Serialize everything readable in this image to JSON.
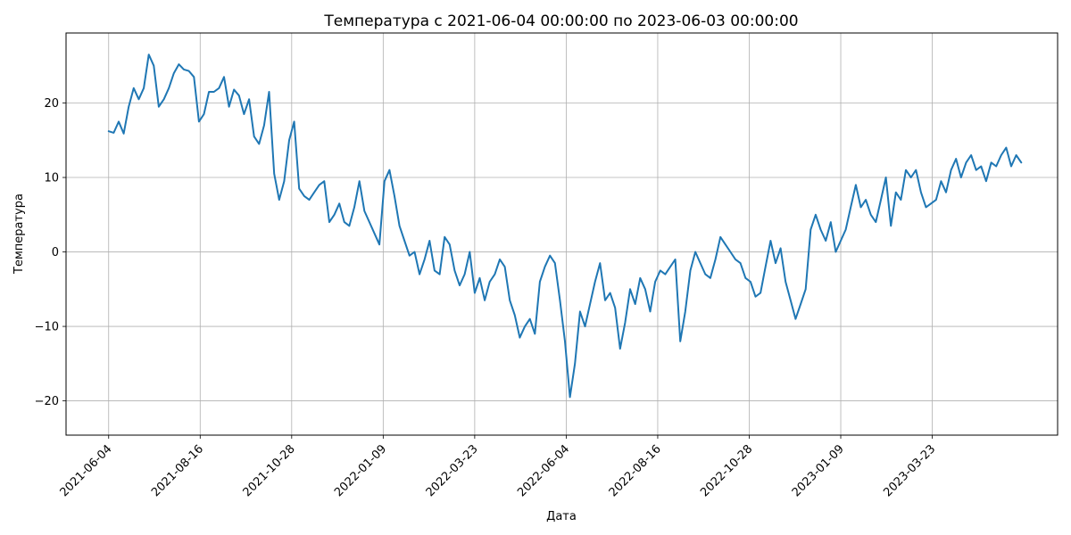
{
  "chart_data": {
    "type": "line",
    "title": "Температура с 2021-06-04 00:00:00 по 2023-06-03 00:00:00",
    "xlabel": "Дата",
    "ylabel": "Температура",
    "x_ticks": [
      "2021-06-04",
      "2021-08-16",
      "2021-10-28",
      "2022-01-09",
      "2022-03-23",
      "2022-06-04",
      "2022-08-16",
      "2022-10-28",
      "2023-01-09",
      "2023-03-23"
    ],
    "y_ticks": [
      "−20",
      "−10",
      "0",
      "10",
      "20"
    ],
    "y_tick_values": [
      -20,
      -10,
      0,
      10,
      20
    ],
    "xlim": [
      "2021-05-01",
      "2023-07-01"
    ],
    "ylim": [
      -24.6,
      29.4
    ],
    "grid": true,
    "series": [
      {
        "color": "#1f77b4",
        "x": [
          "2021-06-04",
          "2021-06-08",
          "2021-06-12",
          "2021-06-16",
          "2021-06-20",
          "2021-06-24",
          "2021-06-28",
          "2021-07-02",
          "2021-07-06",
          "2021-07-10",
          "2021-07-14",
          "2021-07-18",
          "2021-07-22",
          "2021-07-26",
          "2021-07-30",
          "2021-08-03",
          "2021-08-07",
          "2021-08-11",
          "2021-08-15",
          "2021-08-19",
          "2021-08-23",
          "2021-08-27",
          "2021-08-31",
          "2021-09-04",
          "2021-09-08",
          "2021-09-12",
          "2021-09-16",
          "2021-09-20",
          "2021-09-24",
          "2021-09-28",
          "2021-10-02",
          "2021-10-06",
          "2021-10-10",
          "2021-10-14",
          "2021-10-18",
          "2021-10-22",
          "2021-10-26",
          "2021-10-30",
          "2021-11-03",
          "2021-11-07",
          "2021-11-11",
          "2021-11-15",
          "2021-11-19",
          "2021-11-23",
          "2021-11-27",
          "2021-12-01",
          "2021-12-05",
          "2021-12-09",
          "2021-12-13",
          "2021-12-17",
          "2021-12-21",
          "2021-12-25",
          "2021-12-29",
          "2022-01-02",
          "2022-01-06",
          "2022-01-10",
          "2022-01-14",
          "2022-01-18",
          "2022-01-22",
          "2022-01-26",
          "2022-01-30",
          "2022-02-03",
          "2022-02-07",
          "2022-02-11",
          "2022-02-15",
          "2022-02-19",
          "2022-02-23",
          "2022-02-27",
          "2022-03-03",
          "2022-03-07",
          "2022-03-11",
          "2022-03-15",
          "2022-03-19",
          "2022-03-23",
          "2022-03-27",
          "2022-03-31",
          "2022-04-04",
          "2022-04-08",
          "2022-04-12",
          "2022-04-16",
          "2022-04-20",
          "2022-04-24",
          "2022-04-28",
          "2022-05-02",
          "2022-05-06",
          "2022-05-10",
          "2022-05-14",
          "2022-05-18",
          "2022-05-22",
          "2022-05-26",
          "2022-05-30",
          "2022-06-03",
          "2022-06-07",
          "2022-06-11",
          "2022-06-15",
          "2022-06-19",
          "2022-06-23",
          "2022-06-27",
          "2022-07-01",
          "2022-07-05",
          "2022-07-09",
          "2022-07-13",
          "2022-07-17",
          "2022-07-21",
          "2022-07-25",
          "2022-07-29",
          "2022-08-02",
          "2022-08-06",
          "2022-08-10",
          "2022-08-14",
          "2022-08-18",
          "2022-08-22",
          "2022-08-26",
          "2022-08-30",
          "2022-09-03",
          "2022-09-07",
          "2022-09-11",
          "2022-09-15",
          "2022-09-19",
          "2022-09-23",
          "2022-09-27",
          "2022-10-01",
          "2022-10-05",
          "2022-10-09",
          "2022-10-13",
          "2022-10-17",
          "2022-10-21",
          "2022-10-25",
          "2022-10-29",
          "2022-11-02",
          "2022-11-06",
          "2022-11-10",
          "2022-11-14",
          "2022-11-18",
          "2022-11-22",
          "2022-11-26",
          "2022-11-30",
          "2022-12-04",
          "2022-12-08",
          "2022-12-12",
          "2022-12-16",
          "2022-12-20",
          "2022-12-24",
          "2022-12-28",
          "2023-01-01",
          "2023-01-05",
          "2023-01-09",
          "2023-01-13",
          "2023-01-17",
          "2023-01-21",
          "2023-01-25",
          "2023-01-29",
          "2023-02-02",
          "2023-02-06",
          "2023-02-10",
          "2023-02-14",
          "2023-02-18",
          "2023-02-22",
          "2023-02-26",
          "2023-03-02",
          "2023-03-06",
          "2023-03-10",
          "2023-03-14",
          "2023-03-18",
          "2023-03-22",
          "2023-03-26",
          "2023-03-30",
          "2023-04-03",
          "2023-04-07",
          "2023-04-11",
          "2023-04-15",
          "2023-04-19",
          "2023-04-23",
          "2023-04-27",
          "2023-05-01",
          "2023-05-05",
          "2023-05-09",
          "2023-05-13",
          "2023-05-17",
          "2023-05-21",
          "2023-05-25",
          "2023-05-29",
          "2023-06-02"
        ],
        "y": [
          16.2,
          16,
          17.5,
          15.9,
          19.5,
          22,
          20.5,
          22,
          26.5,
          25,
          19.5,
          20.5,
          22,
          24,
          25.2,
          24.5,
          24.3,
          23.5,
          17.5,
          18.5,
          21.5,
          21.5,
          22,
          23.5,
          19.5,
          21.8,
          21,
          18.5,
          20.5,
          15.5,
          14.5,
          17,
          21.5,
          10.5,
          7,
          9.5,
          15,
          17.5,
          8.5,
          7.5,
          7,
          8,
          9,
          9.5,
          4,
          5,
          6.5,
          4,
          3.5,
          6,
          9.5,
          5.5,
          4,
          2.5,
          1,
          9.5,
          11,
          7.5,
          3.5,
          1.5,
          -0.5,
          0,
          -3,
          -1,
          1.5,
          -2.5,
          -3,
          2,
          1,
          -2.5,
          -4.5,
          -3,
          0,
          -5.5,
          -3.5,
          -6.5,
          -4,
          -3,
          -1,
          -2,
          -6.5,
          -8.5,
          -11.5,
          -10,
          -9,
          -11,
          -4,
          -2,
          -0.5,
          -1.5,
          -6.5,
          -12,
          -19.5,
          -15,
          -8,
          -10,
          -7,
          -4,
          -1.5,
          -6.5,
          -5.5,
          -7.5,
          -13,
          -9.5,
          -5,
          -7,
          -3.5,
          -5,
          -8,
          -4,
          -2.5,
          -3,
          -2,
          -1,
          -12,
          -8,
          -2.5,
          0,
          -1.5,
          -3,
          -3.5,
          -1,
          2,
          1,
          0,
          -1,
          -1.5,
          -3.5,
          -4,
          -6,
          -5.5,
          -2,
          1.5,
          -1.5,
          0.5,
          -4,
          -6.5,
          -9,
          -7,
          -5,
          3,
          5,
          3,
          1.5,
          4,
          0,
          1.5,
          3,
          6,
          9,
          6,
          7,
          5,
          4,
          7,
          10,
          3.5,
          8,
          7,
          11,
          10,
          11,
          8,
          6,
          6.5,
          7,
          9.5,
          8,
          11,
          12.5,
          10,
          12,
          13,
          11,
          11.5,
          9.5,
          12,
          11.5,
          13,
          14,
          11.5,
          13,
          12
        ]
      }
    ]
  }
}
